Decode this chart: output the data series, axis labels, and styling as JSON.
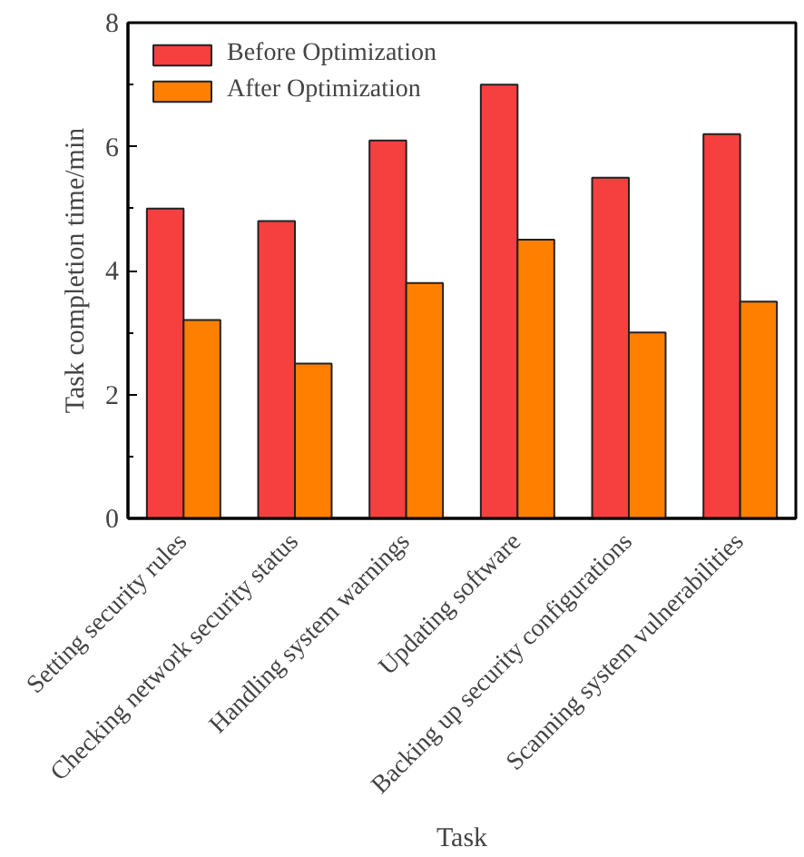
{
  "chart_data": {
    "type": "bar",
    "xlabel": "Task",
    "ylabel": "Task completion time/min",
    "categories": [
      "Setting security rules",
      "Checking network security status",
      "Handling system warnings",
      "Updating software",
      "Backing up security configurations",
      "Scanning system vulnerabilities"
    ],
    "series": [
      {
        "name": "Before Optimization",
        "color": "#f5403f",
        "values": [
          5.0,
          4.8,
          6.1,
          7.0,
          5.5,
          6.2
        ]
      },
      {
        "name": "After Optimization",
        "color": "#ff8000",
        "values": [
          3.2,
          2.5,
          3.8,
          4.5,
          3.0,
          3.5
        ]
      }
    ],
    "ylim": [
      0,
      8
    ],
    "yticks": [
      0,
      2,
      4,
      6,
      8
    ],
    "grid": false,
    "legend": "top left"
  }
}
